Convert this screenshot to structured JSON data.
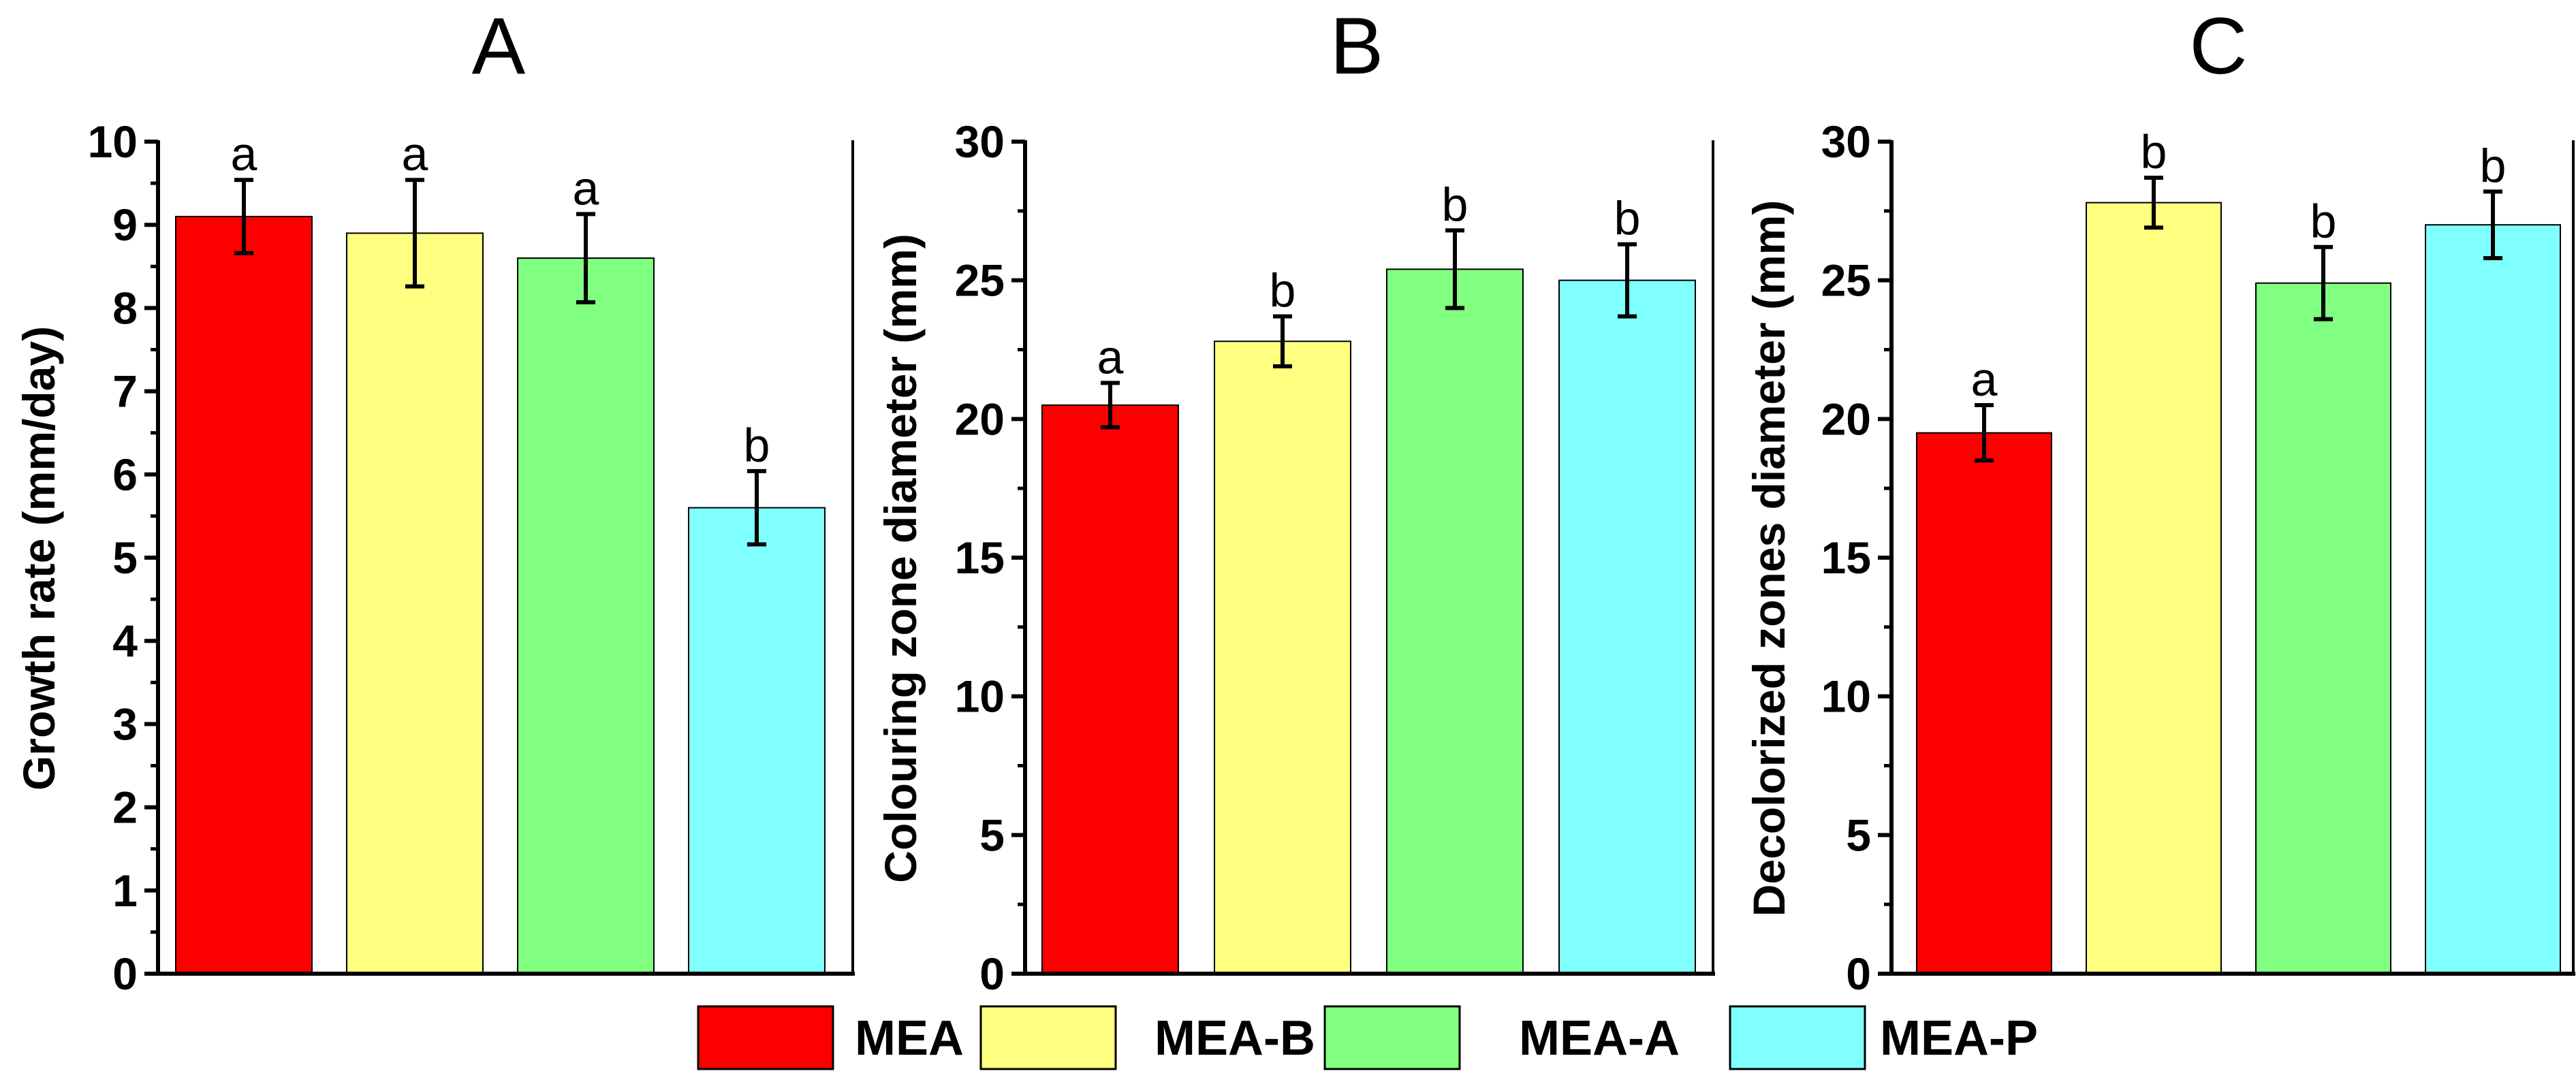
{
  "chart_data": [
    {
      "type": "bar",
      "title": "A",
      "ylabel": "Growth rate (mm/day)",
      "ylim": [
        0,
        10
      ],
      "yticks": [
        0,
        1,
        2,
        3,
        4,
        5,
        6,
        7,
        8,
        9,
        10
      ],
      "categories": [
        "MEA",
        "MEA-B",
        "MEA-A",
        "MEA-P"
      ],
      "values": [
        9.1,
        8.9,
        8.6,
        5.6
      ],
      "errors": [
        0.44,
        0.64,
        0.53,
        0.44
      ],
      "significance": [
        "a",
        "a",
        "a",
        "b"
      ]
    },
    {
      "type": "bar",
      "title": "B",
      "ylabel": "Colouring zone diameter (mm)",
      "ylim": [
        0,
        30
      ],
      "yticks": [
        0,
        5,
        10,
        15,
        20,
        25,
        30
      ],
      "categories": [
        "MEA",
        "MEA-B",
        "MEA-A",
        "MEA-P"
      ],
      "values": [
        20.5,
        22.8,
        25.4,
        25.0
      ],
      "errors": [
        0.8,
        0.9,
        1.4,
        1.3
      ],
      "significance": [
        "a",
        "b",
        "b",
        "b"
      ]
    },
    {
      "type": "bar",
      "title": "C",
      "ylabel": "Decolorized zones diameter (mm)",
      "ylim": [
        0,
        30
      ],
      "yticks": [
        0,
        5,
        10,
        15,
        20,
        25,
        30
      ],
      "categories": [
        "MEA",
        "MEA-B",
        "MEA-A",
        "MEA-P"
      ],
      "values": [
        19.5,
        27.8,
        24.9,
        27.0
      ],
      "errors": [
        1.0,
        0.9,
        1.3,
        1.2
      ],
      "significance": [
        "a",
        "b",
        "b",
        "b"
      ]
    }
  ],
  "legend": {
    "position": "bottom",
    "items": [
      {
        "label": "MEA",
        "color": "#FF0000"
      },
      {
        "label": "MEA-B",
        "color": "#FFFF80"
      },
      {
        "label": "MEA-A",
        "color": "#80FF80"
      },
      {
        "label": "MEA-P",
        "color": "#80FFFF"
      }
    ]
  }
}
